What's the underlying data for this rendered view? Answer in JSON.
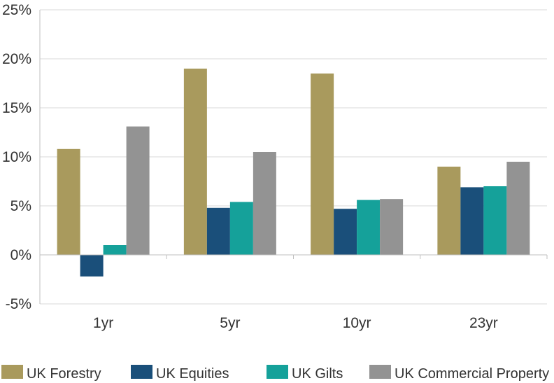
{
  "chart_data": {
    "type": "bar",
    "title": "",
    "xlabel": "",
    "ylabel": "",
    "categories": [
      "1yr",
      "5yr",
      "10yr",
      "23yr"
    ],
    "ylim": [
      -5,
      25
    ],
    "yticks": [
      -5,
      0,
      5,
      10,
      15,
      20,
      25
    ],
    "ytick_labels": [
      "-5%",
      "0%",
      "5%",
      "10%",
      "15%",
      "20%",
      "25%"
    ],
    "grid": "horizontal",
    "legend_position": "bottom",
    "series": [
      {
        "name": "UK Forestry",
        "color": "#a99a5d",
        "values": [
          10.8,
          19.0,
          18.5,
          9.0
        ]
      },
      {
        "name": "UK Equities",
        "color": "#1a4f7a",
        "values": [
          -2.2,
          4.8,
          4.7,
          6.9
        ]
      },
      {
        "name": "UK Gilts",
        "color": "#15a19a",
        "values": [
          1.0,
          5.4,
          5.6,
          7.0
        ]
      },
      {
        "name": "UK Commercial Property",
        "color": "#939393",
        "values": [
          13.1,
          10.5,
          5.7,
          9.5
        ]
      }
    ]
  }
}
